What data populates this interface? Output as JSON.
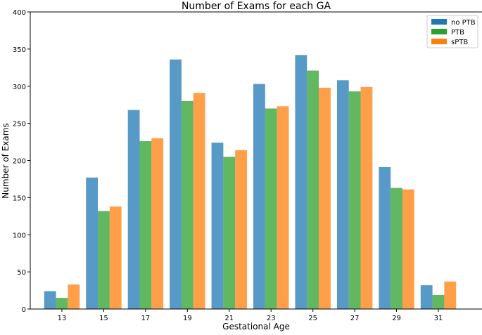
{
  "chart_data": {
    "type": "bar",
    "title": "Number of Exams for each GA",
    "xlabel": "Gestational Age",
    "ylabel": "Number of Exams",
    "categories": [
      "13",
      "15",
      "17",
      "19",
      "21",
      "23",
      "25",
      "27",
      "29",
      "31"
    ],
    "ylim": [
      0,
      400
    ],
    "yticks": [
      0,
      50,
      100,
      150,
      200,
      250,
      300,
      350,
      400
    ],
    "grid": false,
    "legend_position": "top-right",
    "series": [
      {
        "name": "no PTB",
        "color": "#1f77b4",
        "values": [
          24,
          177,
          268,
          336,
          224,
          303,
          342,
          308,
          191,
          32
        ]
      },
      {
        "name": "PTB",
        "color": "#2ca02c",
        "values": [
          15,
          132,
          226,
          280,
          205,
          270,
          321,
          293,
          163,
          19
        ]
      },
      {
        "name": "sPTB",
        "color": "#ff7f0e",
        "values": [
          33,
          138,
          230,
          291,
          214,
          273,
          298,
          299,
          161,
          37
        ]
      }
    ]
  }
}
